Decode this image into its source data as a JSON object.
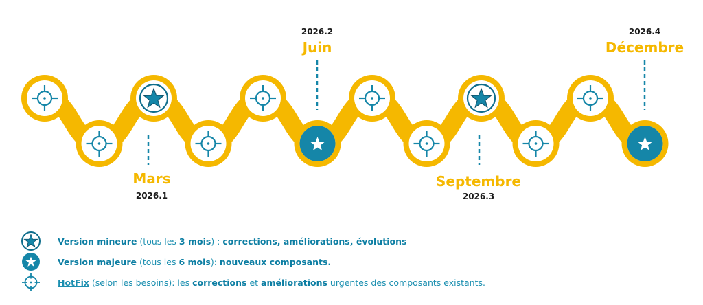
{
  "timeline": {
    "milestones": [
      {
        "month": "Mars",
        "version": "2026.1"
      },
      {
        "month": "Juin",
        "version": "2026.2"
      },
      {
        "month": "Septembre",
        "version": "2026.3"
      },
      {
        "month": "Décembre",
        "version": "2026.4"
      }
    ],
    "nodes": [
      "hotfix",
      "hotfix",
      "minor",
      "hotfix",
      "hotfix",
      "major",
      "hotfix",
      "hotfix",
      "minor",
      "hotfix",
      "hotfix",
      "major"
    ],
    "colors": {
      "track": "#f5b800",
      "accent": "#1586a8",
      "dark": "#0f6e8c"
    }
  },
  "legend": {
    "minor": {
      "icon": "star-outline-icon",
      "title": "Version mineure",
      "open": "(tous les",
      "period": "3 mois",
      "close": ") :",
      "details": "corrections, améliorations, évolutions"
    },
    "major": {
      "icon": "star-filled-icon",
      "title": "Version majeure",
      "open": "(tous les",
      "period": "6 mois",
      "close": "):",
      "details": "nouveaux composants."
    },
    "hotfix": {
      "icon": "crosshair-icon",
      "title": "HotFix",
      "middle": "(selon les besoins): les",
      "word1": "corrections",
      "and": "et",
      "word2": "améliorations",
      "end": "urgentes des composants existants."
    }
  }
}
